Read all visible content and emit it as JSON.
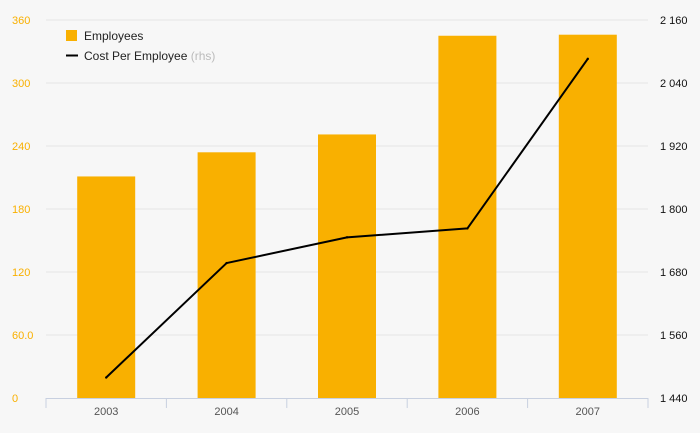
{
  "chart_data": {
    "type": "bar",
    "categories": [
      "2003",
      "2004",
      "2005",
      "2006",
      "2007"
    ],
    "series": [
      {
        "name": "Employees",
        "type": "bar",
        "axis": "left",
        "color": "#f9b000",
        "values": [
          211,
          234,
          251,
          345,
          346
        ]
      },
      {
        "name": "Cost Per Employee",
        "type": "line",
        "axis": "right",
        "color": "#000000",
        "values": [
          1479,
          1697,
          1746,
          1763,
          2086
        ]
      }
    ],
    "legend": {
      "position": "top-left",
      "items": [
        {
          "label": "Employees",
          "suffix": ""
        },
        {
          "label": "Cost Per Employee",
          "suffix": "(rhs)"
        }
      ]
    },
    "y_left": {
      "ylim": [
        0,
        360
      ],
      "ticks": [
        0,
        60,
        120,
        180,
        240,
        300,
        360
      ],
      "tick_labels": [
        "0",
        "60.0",
        "120",
        "180",
        "240",
        "300",
        "360"
      ],
      "color": "#f9b000"
    },
    "y_right": {
      "ylim": [
        1440,
        2160
      ],
      "ticks": [
        1440,
        1560,
        1680,
        1800,
        1920,
        2040,
        2160
      ],
      "tick_labels": [
        "1 440",
        "1 560",
        "1 680",
        "1 800",
        "1 920",
        "2 040",
        "2 160"
      ]
    },
    "grid": true
  }
}
